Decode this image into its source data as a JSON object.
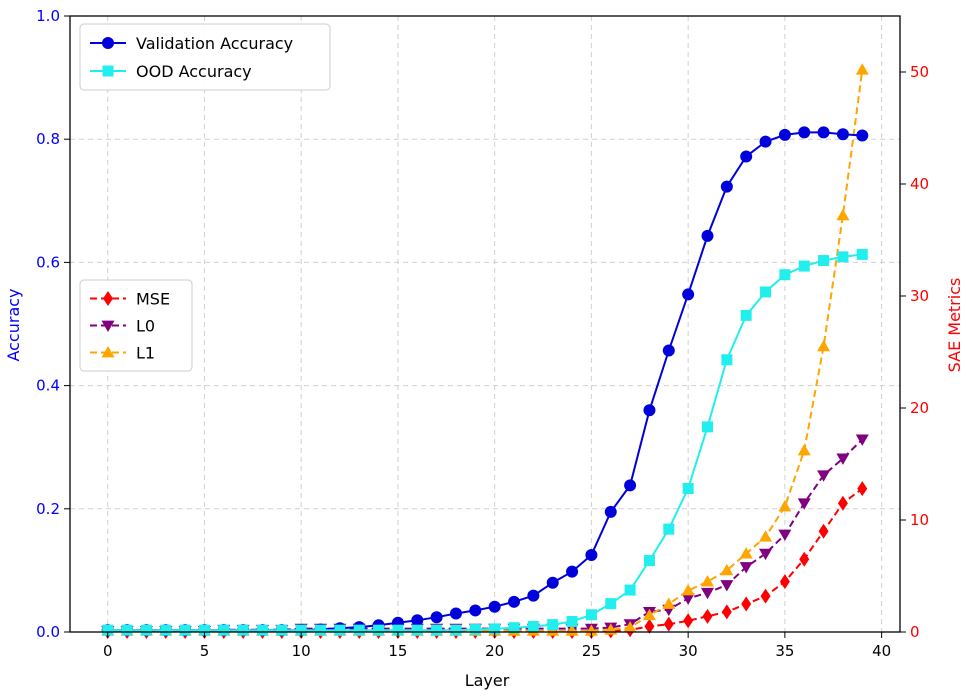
{
  "chart_data": {
    "type": "line",
    "xlabel": "Layer",
    "ylabel_left": "Accuracy",
    "ylabel_right": "SAE Metrics",
    "xlim": [
      -1.95,
      40.95
    ],
    "ylim_left": [
      0,
      1.0
    ],
    "ylim_right": [
      0,
      55
    ],
    "x_ticks": [
      0,
      5,
      10,
      15,
      20,
      25,
      30,
      35,
      40
    ],
    "y_ticks_left": [
      0.0,
      0.2,
      0.4,
      0.6,
      0.8,
      1.0
    ],
    "y_ticks_right": [
      0,
      10,
      20,
      30,
      40,
      50
    ],
    "grid": true,
    "legend_left_top": "top-left",
    "legend_left_middle": "center-left",
    "colors": {
      "left_axis": "#0000ff",
      "right_axis": "#ff0000"
    },
    "x": [
      0,
      1,
      2,
      3,
      4,
      5,
      6,
      7,
      8,
      9,
      10,
      11,
      12,
      13,
      14,
      15,
      16,
      17,
      18,
      19,
      20,
      21,
      22,
      23,
      24,
      25,
      26,
      27,
      28,
      29,
      30,
      31,
      32,
      33,
      34,
      35,
      36,
      37,
      38,
      39
    ],
    "series_left": [
      {
        "name": "Validation Accuracy",
        "color": "#0000dd",
        "marker": "circle",
        "linestyle": "solid",
        "values": [
          0.003,
          0.003,
          0.003,
          0.003,
          0.003,
          0.003,
          0.003,
          0.003,
          0.003,
          0.003,
          0.003,
          0.004,
          0.006,
          0.008,
          0.011,
          0.015,
          0.019,
          0.024,
          0.03,
          0.035,
          0.041,
          0.049,
          0.059,
          0.08,
          0.098,
          0.125,
          0.195,
          0.238,
          0.36,
          0.457,
          0.548,
          0.643,
          0.723,
          0.772,
          0.796,
          0.807,
          0.811,
          0.811,
          0.808,
          0.806
        ]
      },
      {
        "name": "OOD Accuracy",
        "color": "#22eeee",
        "marker": "square",
        "linestyle": "solid",
        "values": [
          0.003,
          0.003,
          0.003,
          0.003,
          0.003,
          0.003,
          0.003,
          0.003,
          0.003,
          0.003,
          0.003,
          0.003,
          0.003,
          0.003,
          0.003,
          0.003,
          0.003,
          0.003,
          0.003,
          0.004,
          0.005,
          0.007,
          0.009,
          0.012,
          0.017,
          0.028,
          0.046,
          0.068,
          0.116,
          0.167,
          0.233,
          0.333,
          0.442,
          0.514,
          0.552,
          0.58,
          0.594,
          0.603,
          0.609,
          0.613
        ]
      }
    ],
    "series_right": [
      {
        "name": "MSE",
        "color": "#ff0000",
        "marker": "diamond",
        "linestyle": "dashed",
        "values": [
          0.05,
          0.05,
          0.05,
          0.05,
          0.05,
          0.05,
          0.05,
          0.05,
          0.05,
          0.05,
          0.05,
          0.05,
          0.05,
          0.05,
          0.05,
          0.05,
          0.05,
          0.05,
          0.05,
          0.05,
          0.05,
          0.05,
          0.05,
          0.05,
          0.05,
          0.05,
          0.1,
          0.2,
          0.5,
          0.7,
          1.0,
          1.4,
          1.8,
          2.5,
          3.2,
          4.5,
          6.5,
          9.0,
          11.5,
          12.8
        ]
      },
      {
        "name": "L0",
        "color": "#800080",
        "marker": "triangle-down",
        "linestyle": "dashed",
        "values": [
          0.1,
          0.1,
          0.1,
          0.1,
          0.1,
          0.1,
          0.2,
          0.2,
          0.2,
          0.2,
          0.3,
          0.3,
          0.3,
          0.3,
          0.3,
          0.3,
          0.3,
          0.3,
          0.3,
          0.3,
          0.3,
          0.3,
          0.3,
          0.3,
          0.3,
          0.3,
          0.4,
          0.7,
          1.8,
          2.0,
          3.0,
          3.5,
          4.2,
          5.8,
          7.0,
          8.7,
          11.5,
          14.0,
          15.5,
          17.2
        ]
      },
      {
        "name": "L1",
        "color": "#ffa500",
        "marker": "triangle-up",
        "linestyle": "dashed",
        "values": [
          0.1,
          0.1,
          0.1,
          0.1,
          0.1,
          0.1,
          0.1,
          0.1,
          0.1,
          0.1,
          0.1,
          0.1,
          0.1,
          0.1,
          0.1,
          0.1,
          0.1,
          0.1,
          0.1,
          0.1,
          0.1,
          0.1,
          0.1,
          0.1,
          0.1,
          0.1,
          0.2,
          0.4,
          1.5,
          2.5,
          3.7,
          4.5,
          5.5,
          7.0,
          8.5,
          11.2,
          16.2,
          25.5,
          37.2,
          50.2
        ]
      }
    ]
  }
}
